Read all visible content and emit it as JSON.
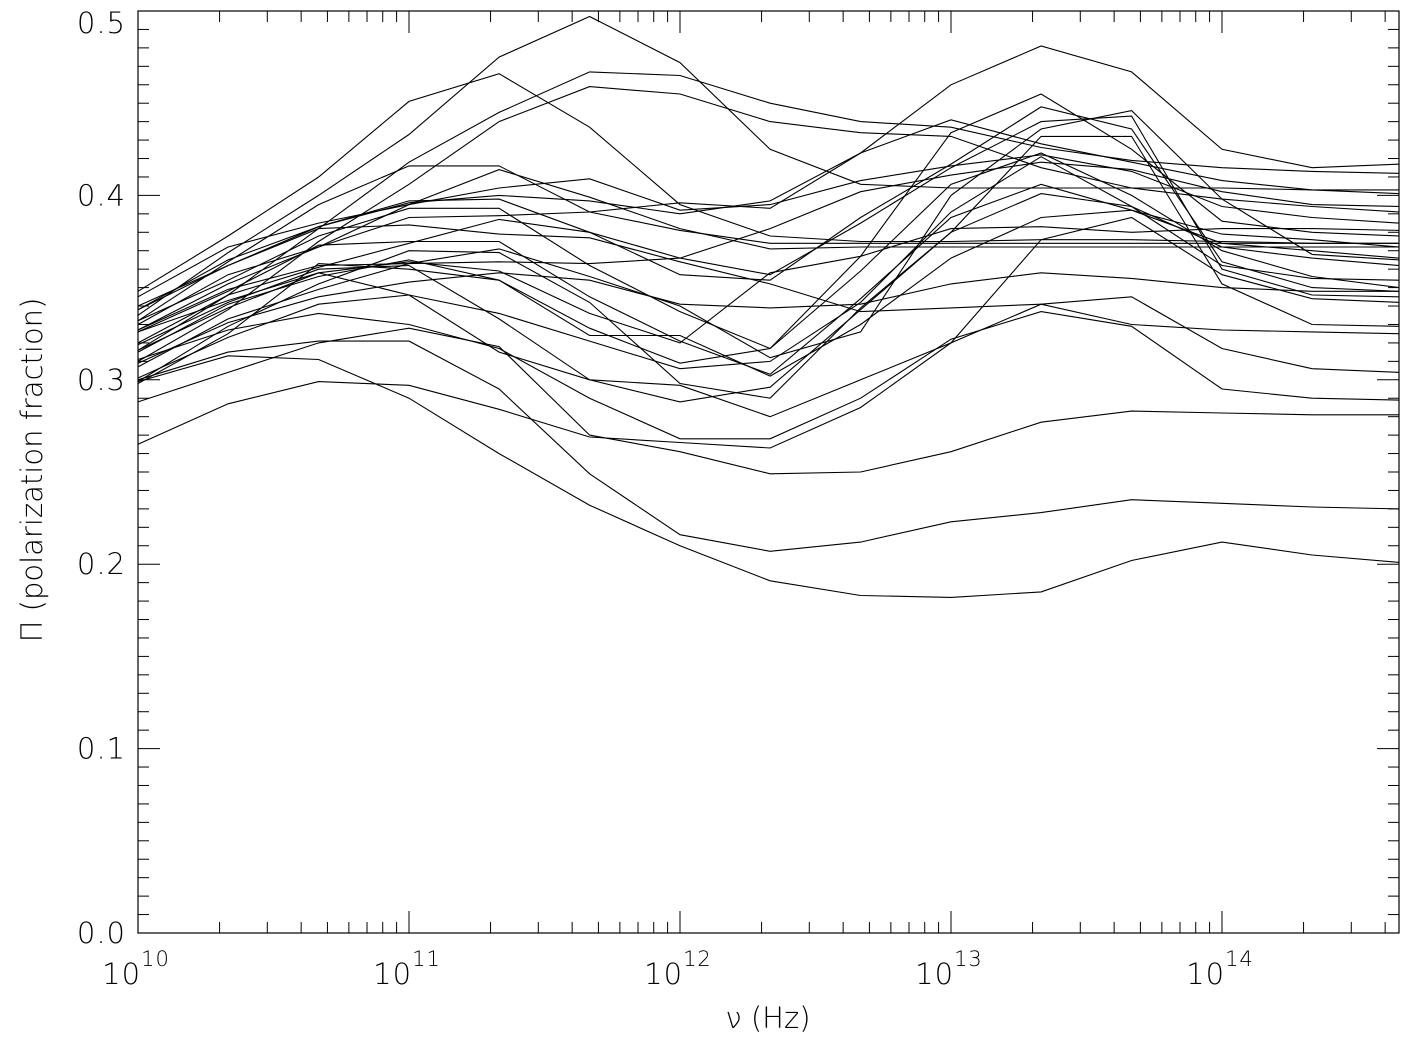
{
  "chart_data": {
    "type": "line",
    "xlabel": "ν (Hz)",
    "ylabel": "Π (polarization fraction)",
    "xscale": "log",
    "xlim": [
      10000000000.0,
      450000000000000.0
    ],
    "ylim": [
      0.0,
      0.5
    ],
    "grid": false,
    "legend": "none",
    "line_color": "#000000",
    "x_tick_labels": [
      {
        "base": "10",
        "exp": "10",
        "value": 10000000000.0
      },
      {
        "base": "10",
        "exp": "11",
        "value": 100000000000.0
      },
      {
        "base": "10",
        "exp": "12",
        "value": 1000000000000.0
      },
      {
        "base": "10",
        "exp": "13",
        "value": 10000000000000.0
      },
      {
        "base": "10",
        "exp": "14",
        "value": 100000000000000.0
      }
    ],
    "y_tick_labels": [
      {
        "text": "0.0",
        "value": 0.0
      },
      {
        "text": "0.1",
        "value": 0.1
      },
      {
        "text": "0.2",
        "value": 0.2
      },
      {
        "text": "0.3",
        "value": 0.3
      },
      {
        "text": "0.4",
        "value": 0.4
      },
      {
        "text": "0.5",
        "value": 0.5
      }
    ],
    "x": [
      10000000000.0,
      21500000000.0,
      46400000000.0,
      100000000000.0,
      215000000000.0,
      464000000000.0,
      1000000000000.0,
      2150000000000.0,
      4640000000000.0,
      10000000000000.0,
      21500000000000.0,
      46400000000000.0,
      100000000000000.0,
      215000000000000.0,
      450000000000000.0
    ],
    "series": [
      {
        "values": [
          0.265,
          0.287,
          0.299,
          0.297,
          0.284,
          0.269,
          0.266,
          0.263,
          0.285,
          0.32,
          0.341,
          0.345,
          0.317,
          0.306,
          0.304
        ]
      },
      {
        "values": [
          0.3,
          0.315,
          0.321,
          0.321,
          0.295,
          0.249,
          0.216,
          0.207,
          0.212,
          0.223,
          0.228,
          0.235,
          0.233,
          0.231,
          0.23
        ]
      },
      {
        "values": [
          0.299,
          0.313,
          0.311,
          0.29,
          0.26,
          0.232,
          0.21,
          0.191,
          0.183,
          0.182,
          0.185,
          0.202,
          0.212,
          0.205,
          0.201
        ]
      },
      {
        "values": [
          0.288,
          0.304,
          0.32,
          0.328,
          0.318,
          0.27,
          0.261,
          0.249,
          0.25,
          0.261,
          0.277,
          0.283,
          0.282,
          0.281,
          0.281
        ]
      },
      {
        "values": [
          0.311,
          0.327,
          0.336,
          0.33,
          0.317,
          0.29,
          0.268,
          0.268,
          0.29,
          0.322,
          0.337,
          0.329,
          0.295,
          0.29,
          0.289
        ]
      },
      {
        "values": [
          0.319,
          0.342,
          0.36,
          0.362,
          0.333,
          0.3,
          0.288,
          0.296,
          0.338,
          0.38,
          0.401,
          0.394,
          0.372,
          0.366,
          0.362
        ]
      },
      {
        "values": [
          0.326,
          0.348,
          0.373,
          0.375,
          0.375,
          0.345,
          0.321,
          0.303,
          0.344,
          0.388,
          0.406,
          0.392,
          0.374,
          0.37,
          0.366
        ]
      },
      {
        "values": [
          0.332,
          0.354,
          0.378,
          0.393,
          0.393,
          0.362,
          0.337,
          0.317,
          0.359,
          0.406,
          0.423,
          0.4,
          0.37,
          0.356,
          0.35
        ]
      },
      {
        "values": [
          0.338,
          0.362,
          0.383,
          0.396,
          0.4,
          0.397,
          0.39,
          0.397,
          0.423,
          0.441,
          0.428,
          0.418,
          0.408,
          0.403,
          0.401
        ]
      },
      {
        "values": [
          0.33,
          0.357,
          0.372,
          0.388,
          0.389,
          0.391,
          0.396,
          0.393,
          0.423,
          0.46,
          0.481,
          0.467,
          0.425,
          0.415,
          0.417
        ]
      },
      {
        "values": [
          0.348,
          0.378,
          0.41,
          0.451,
          0.466,
          0.437,
          0.395,
          0.378,
          0.375,
          0.375,
          0.376,
          0.376,
          0.375,
          0.374,
          0.374
        ]
      },
      {
        "values": [
          0.335,
          0.369,
          0.4,
          0.433,
          0.475,
          0.497,
          0.472,
          0.425,
          0.406,
          0.404,
          0.404,
          0.404,
          0.404,
          0.403,
          0.403
        ]
      },
      {
        "values": [
          0.316,
          0.346,
          0.382,
          0.418,
          0.445,
          0.467,
          0.465,
          0.45,
          0.44,
          0.437,
          0.426,
          0.419,
          0.415,
          0.413,
          0.412
        ]
      },
      {
        "values": [
          0.31,
          0.338,
          0.375,
          0.406,
          0.44,
          0.459,
          0.455,
          0.44,
          0.434,
          0.432,
          0.415,
          0.404,
          0.398,
          0.394,
          0.391
        ]
      },
      {
        "values": [
          0.327,
          0.352,
          0.372,
          0.395,
          0.414,
          0.399,
          0.382,
          0.371,
          0.372,
          0.372,
          0.372,
          0.372,
          0.372,
          0.372,
          0.372
        ]
      },
      {
        "values": [
          0.338,
          0.365,
          0.383,
          0.397,
          0.398,
          0.38,
          0.366,
          0.357,
          0.385,
          0.415,
          0.44,
          0.443,
          0.36,
          0.346,
          0.345
        ]
      },
      {
        "values": [
          0.32,
          0.346,
          0.361,
          0.374,
          0.387,
          0.38,
          0.357,
          0.354,
          0.388,
          0.417,
          0.448,
          0.436,
          0.364,
          0.35,
          0.348
        ]
      },
      {
        "values": [
          0.307,
          0.333,
          0.349,
          0.363,
          0.371,
          0.356,
          0.34,
          0.312,
          0.326,
          0.4,
          0.436,
          0.446,
          0.398,
          0.368,
          0.365
        ]
      },
      {
        "values": [
          0.315,
          0.341,
          0.356,
          0.365,
          0.354,
          0.328,
          0.309,
          0.317,
          0.367,
          0.434,
          0.455,
          0.425,
          0.386,
          0.38,
          0.378
        ]
      },
      {
        "values": [
          0.299,
          0.329,
          0.352,
          0.37,
          0.369,
          0.342,
          0.298,
          0.29,
          0.339,
          0.38,
          0.432,
          0.432,
          0.352,
          0.33,
          0.329
        ]
      },
      {
        "values": [
          0.301,
          0.323,
          0.341,
          0.346,
          0.336,
          0.321,
          0.306,
          0.31,
          0.342,
          0.391,
          0.421,
          0.394,
          0.362,
          0.355,
          0.354
        ]
      },
      {
        "values": [
          0.309,
          0.331,
          0.345,
          0.353,
          0.358,
          0.354,
          0.341,
          0.339,
          0.341,
          0.352,
          0.358,
          0.355,
          0.35,
          0.348,
          0.348
        ]
      },
      {
        "values": [
          0.332,
          0.364,
          0.395,
          0.416,
          0.416,
          0.391,
          0.381,
          0.374,
          0.374,
          0.374,
          0.374,
          0.374,
          0.374,
          0.374,
          0.374
        ]
      },
      {
        "values": [
          0.327,
          0.349,
          0.362,
          0.363,
          0.364,
          0.363,
          0.366,
          0.382,
          0.402,
          0.411,
          0.418,
          0.414,
          0.402,
          0.395,
          0.394
        ]
      },
      {
        "values": [
          0.34,
          0.362,
          0.382,
          0.384,
          0.379,
          0.377,
          0.364,
          0.352,
          0.337,
          0.339,
          0.341,
          0.33,
          0.327,
          0.326,
          0.325
        ]
      },
      {
        "values": [
          0.326,
          0.343,
          0.358,
          0.346,
          0.315,
          0.3,
          0.297,
          0.28,
          0.3,
          0.32,
          0.376,
          0.388,
          0.357,
          0.344,
          0.342
        ]
      },
      {
        "values": [
          0.316,
          0.339,
          0.358,
          0.364,
          0.359,
          0.336,
          0.32,
          0.358,
          0.367,
          0.382,
          0.383,
          0.38,
          0.382,
          0.382,
          0.381
        ]
      },
      {
        "values": [
          0.345,
          0.372,
          0.385,
          0.395,
          0.404,
          0.409,
          0.392,
          0.395,
          0.408,
          0.416,
          0.422,
          0.413,
          0.394,
          0.388,
          0.385
        ]
      },
      {
        "values": [
          0.298,
          0.325,
          0.363,
          0.36,
          0.354,
          0.324,
          0.324,
          0.302,
          0.33,
          0.366,
          0.388,
          0.392,
          0.379,
          0.376,
          0.372
        ]
      }
    ]
  }
}
